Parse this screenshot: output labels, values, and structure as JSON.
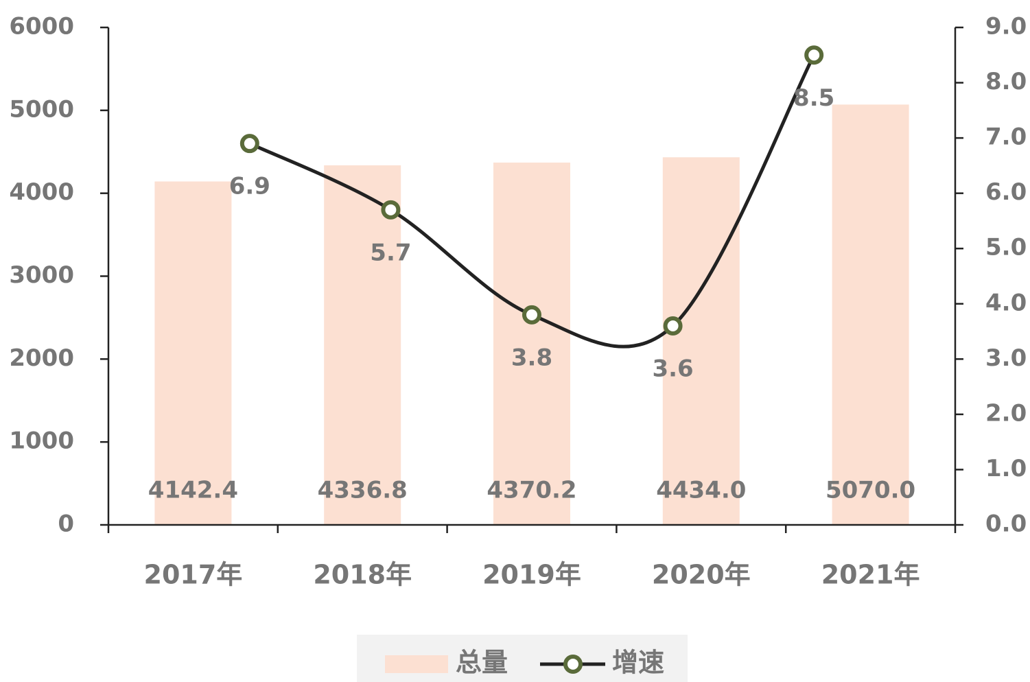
{
  "chart_data": {
    "type": "bar",
    "categories": [
      "2017年",
      "2018年",
      "2019年",
      "2020年",
      "2021年"
    ],
    "series": [
      {
        "name": "总量",
        "type": "bar",
        "color": "#fce0d2",
        "values": [
          4142.4,
          4336.8,
          4370.2,
          4434.0,
          5070.0
        ],
        "value_labels": [
          "4142.4",
          "4336.8",
          "4370.2",
          "4434.0",
          "5070.0"
        ]
      },
      {
        "name": "增速",
        "type": "line",
        "axis": "y2",
        "color": "#222222",
        "marker_color": "#5a6b3a",
        "values": [
          6.9,
          5.7,
          3.8,
          3.6,
          8.5
        ]
      }
    ],
    "ylim": [
      0,
      6000
    ],
    "yticks": [
      0,
      1000,
      2000,
      3000,
      4000,
      5000,
      6000
    ],
    "y2lim": [
      0,
      9
    ],
    "y2ticks": [
      {
        "value": 0,
        "label": "0.0"
      },
      {
        "value": 1,
        "label": "1.0"
      },
      {
        "value": 2,
        "label": "2.0"
      },
      {
        "value": 3,
        "label": "3.0"
      },
      {
        "value": 4,
        "label": "4.0"
      },
      {
        "value": 5,
        "label": "5.0"
      },
      {
        "value": 6,
        "label": "6.0"
      },
      {
        "value": 7,
        "label": "7.0"
      },
      {
        "value": 8,
        "label": "8.0"
      },
      {
        "value": 9,
        "label": "9.0"
      }
    ],
    "legend": "bottom"
  }
}
